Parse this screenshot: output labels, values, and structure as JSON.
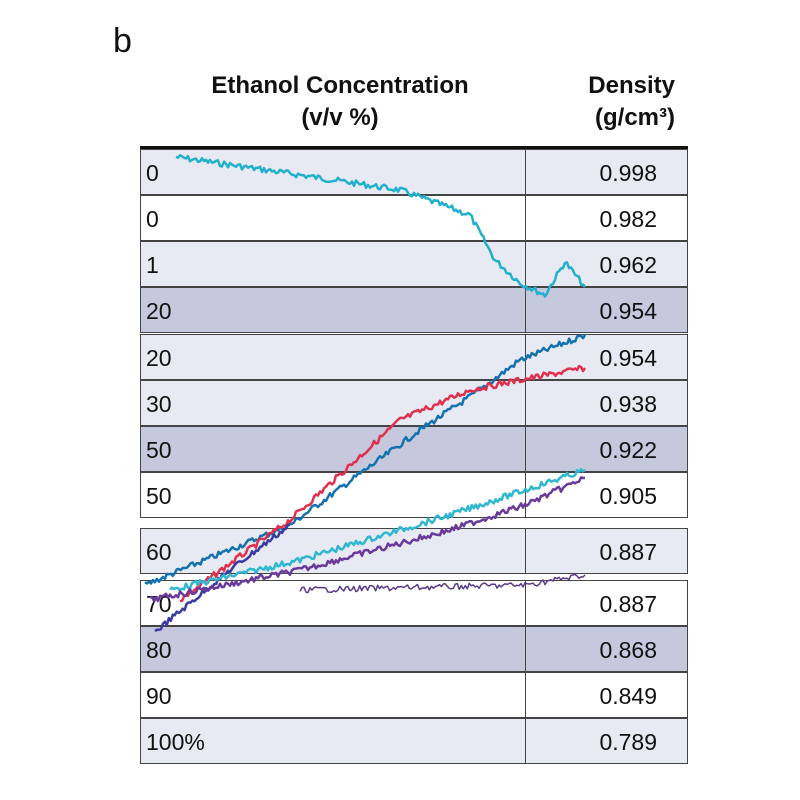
{
  "panel_label": "b",
  "chart_data": {
    "type": "table",
    "columns": [
      "Ethanol Concentration (v/v %)",
      "Density (g/cm3)"
    ],
    "headers": {
      "concentration_line1": "Ethanol Concentration",
      "concentration_line2": "(v/v %)",
      "density_line1": "Density",
      "density_line2": "(g/cm³)"
    },
    "rows": [
      {
        "concentration": "0",
        "density": "0.998",
        "shade": "light"
      },
      {
        "concentration": "0",
        "density": "0.982",
        "shade": "white"
      },
      {
        "concentration": "1",
        "density": "0.962",
        "shade": "light"
      },
      {
        "concentration": "20",
        "density": "0.954",
        "shade": "dark"
      },
      {
        "concentration": "20",
        "density": "0.954",
        "shade": "light"
      },
      {
        "concentration": "30",
        "density": "0.938",
        "shade": "light"
      },
      {
        "concentration": "50",
        "density": "0.922",
        "shade": "dark"
      },
      {
        "concentration": "50",
        "density": "0.905",
        "shade": "white"
      },
      {
        "concentration": "60",
        "density": "0.887",
        "shade": "light"
      },
      {
        "concentration": "70",
        "density": "0.887",
        "shade": "white"
      },
      {
        "concentration": "80",
        "density": "0.868",
        "shade": "dark"
      },
      {
        "concentration": "90",
        "density": "0.849",
        "shade": "white"
      },
      {
        "concentration": "100%",
        "density": "0.789",
        "shade": "light"
      }
    ],
    "overlay_series_colors": [
      "#22b0cc",
      "#1572b0",
      "#e0304e",
      "#3a3aa0",
      "#30b8d0",
      "#6a3a9a",
      "#5a3a8a"
    ],
    "shade_colors": {
      "light": "#e8eaf3",
      "white": "#ffffff",
      "dark": "#c6c9de"
    }
  }
}
